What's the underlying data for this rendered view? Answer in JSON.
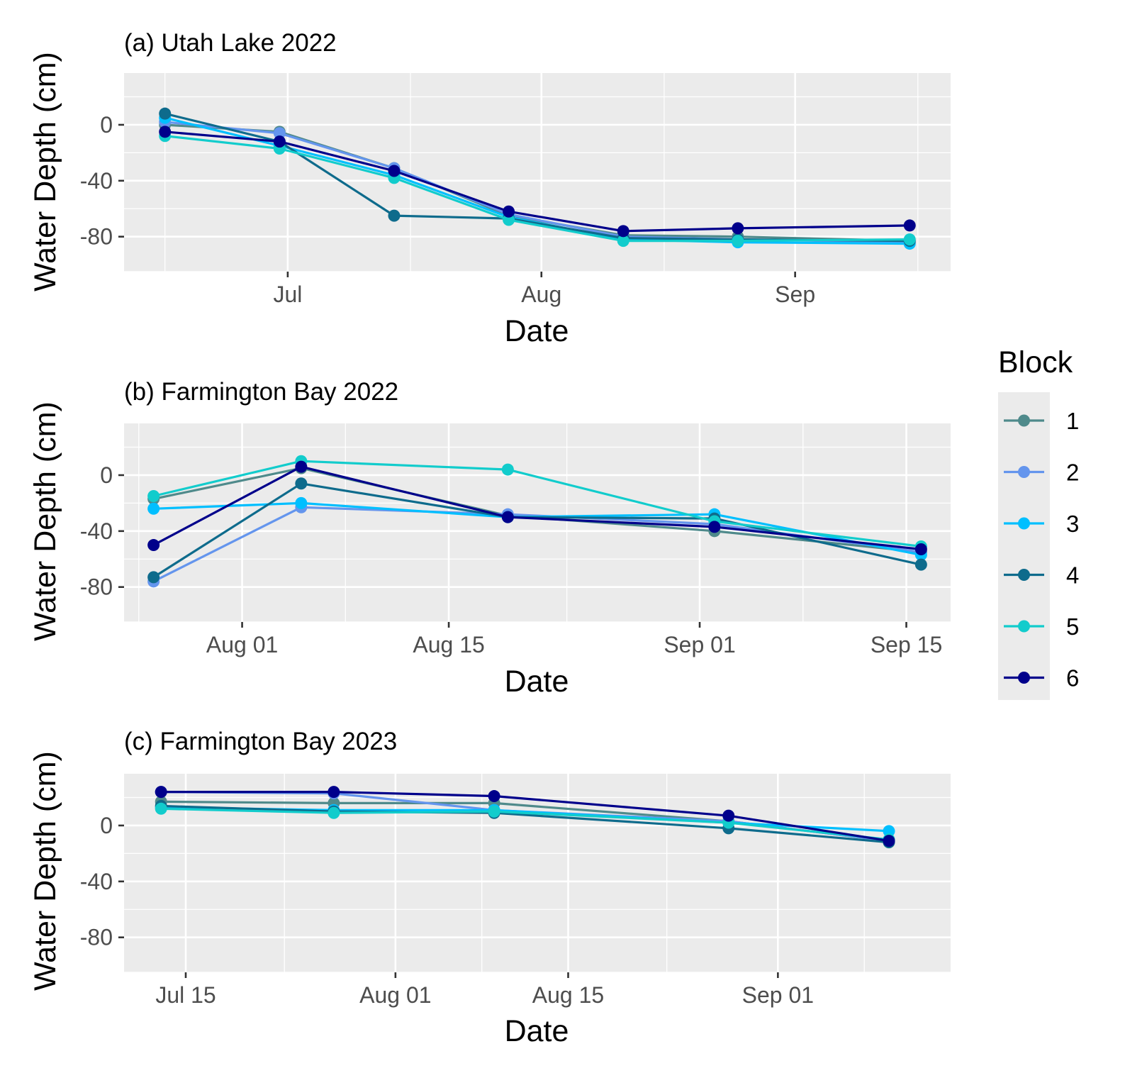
{
  "colors": {
    "1": "#4f8a8b",
    "2": "#6495ed",
    "3": "#00bfff",
    "4": "#0e6b8c",
    "5": "#12cccc",
    "6": "#00008b",
    "panel_bg": "#ebebeb",
    "grid": "#ffffff"
  },
  "legend": {
    "title": "Block",
    "items": [
      "1",
      "2",
      "3",
      "4",
      "5",
      "6"
    ],
    "placement": "right"
  },
  "chart_data": [
    {
      "type": "line",
      "title": "(a) Utah Lake 2022",
      "xlabel": "Date",
      "ylabel": "Water Depth (cm)",
      "x_tick_labels": [
        "Jul",
        "Aug",
        "Sep"
      ],
      "x_ticks": [
        "2022-07-01",
        "2022-08-01",
        "2022-09-01"
      ],
      "x_minor": [
        "2022-06-16",
        "2022-07-16",
        "2022-08-16",
        "2022-09-16"
      ],
      "xlim": [
        "2022-06-11",
        "2022-09-20"
      ],
      "ylim": [
        -105,
        37
      ],
      "y_ticks": [
        0,
        -40,
        -80
      ],
      "y_tick_labels": [
        "0",
        "-40",
        "-80"
      ],
      "grid": true,
      "x": [
        "2022-06-16",
        "2022-06-30",
        "2022-07-14",
        "2022-07-28",
        "2022-08-11",
        "2022-08-25",
        "2022-09-15"
      ],
      "series": [
        {
          "name": "1",
          "values": [
            0,
            -5,
            -31,
            -65,
            -79,
            -80,
            -83
          ]
        },
        {
          "name": "2",
          "values": [
            2,
            -6,
            -31,
            -64,
            -80,
            -82,
            -84
          ]
        },
        {
          "name": "3",
          "values": [
            5,
            -15,
            -36,
            -66,
            -82,
            -84,
            -85
          ]
        },
        {
          "name": "4",
          "values": [
            8,
            -12,
            -65,
            -67,
            -81,
            -82,
            -83
          ]
        },
        {
          "name": "5",
          "values": [
            -8,
            -17,
            -38,
            -68,
            -83,
            -83,
            -82
          ]
        },
        {
          "name": "6",
          "values": [
            -5,
            -12,
            -33,
            -62,
            -76,
            -74,
            -72
          ]
        }
      ]
    },
    {
      "type": "line",
      "title": "(b) Farmington Bay 2022",
      "xlabel": "Date",
      "ylabel": "Water Depth (cm)",
      "x_tick_labels": [
        "Aug 01",
        "Aug 15",
        "Sep 01",
        "Sep 15"
      ],
      "x_ticks": [
        "2022-08-01",
        "2022-08-15",
        "2022-09-01",
        "2022-09-15"
      ],
      "x_minor": [
        "2022-07-25",
        "2022-08-08",
        "2022-08-23",
        "2022-09-08"
      ],
      "xlim": [
        "2022-07-24",
        "2022-09-18"
      ],
      "ylim": [
        -105,
        37
      ],
      "y_ticks": [
        0,
        -40,
        -80
      ],
      "y_tick_labels": [
        "0",
        "-40",
        "-80"
      ],
      "grid": true,
      "x": [
        "2022-07-26",
        "2022-08-05",
        "2022-08-19",
        "2022-09-02",
        "2022-09-16"
      ],
      "series": [
        {
          "name": "1",
          "values": [
            -17,
            5,
            -29,
            -40,
            -55
          ]
        },
        {
          "name": "2",
          "values": [
            -76,
            -23,
            -28,
            -35,
            -55
          ]
        },
        {
          "name": "3",
          "values": [
            -24,
            -20,
            -30,
            -28,
            -57
          ]
        },
        {
          "name": "4",
          "values": [
            -73,
            -6,
            -30,
            -31,
            -64
          ]
        },
        {
          "name": "5",
          "values": [
            -15,
            10,
            4,
            -33,
            -51
          ]
        },
        {
          "name": "6",
          "values": [
            -50,
            6,
            -30,
            -37,
            -53
          ]
        }
      ]
    },
    {
      "type": "line",
      "title": "(c) Farmington Bay 2023",
      "xlabel": "Date",
      "ylabel": "Water Depth (cm)",
      "x_tick_labels": [
        "Jul 15",
        "Aug 01",
        "Aug 15",
        "Sep 01"
      ],
      "x_ticks": [
        "2023-07-15",
        "2023-08-01",
        "2023-08-15",
        "2023-09-01"
      ],
      "x_minor": [
        "2023-07-08",
        "2023-07-23",
        "2023-08-08",
        "2023-08-23",
        "2023-09-08"
      ],
      "xlim": [
        "2023-07-10",
        "2023-09-15"
      ],
      "ylim": [
        -105,
        37
      ],
      "y_ticks": [
        0,
        -40,
        -80
      ],
      "y_tick_labels": [
        "0",
        "-40",
        "-80"
      ],
      "grid": true,
      "x": [
        "2023-07-13",
        "2023-07-27",
        "2023-08-09",
        "2023-08-28",
        "2023-09-10"
      ],
      "series": [
        {
          "name": "1",
          "values": [
            17,
            16,
            16,
            3,
            -11
          ]
        },
        {
          "name": "2",
          "values": [
            24,
            23,
            11,
            3,
            -11
          ]
        },
        {
          "name": "3",
          "values": [
            13,
            11,
            11,
            2,
            -4
          ]
        },
        {
          "name": "4",
          "values": [
            14,
            10,
            9,
            -2,
            -12
          ]
        },
        {
          "name": "5",
          "values": [
            12,
            9,
            10,
            2,
            -10
          ]
        },
        {
          "name": "6",
          "values": [
            24,
            24,
            21,
            7,
            -11
          ]
        }
      ]
    }
  ]
}
